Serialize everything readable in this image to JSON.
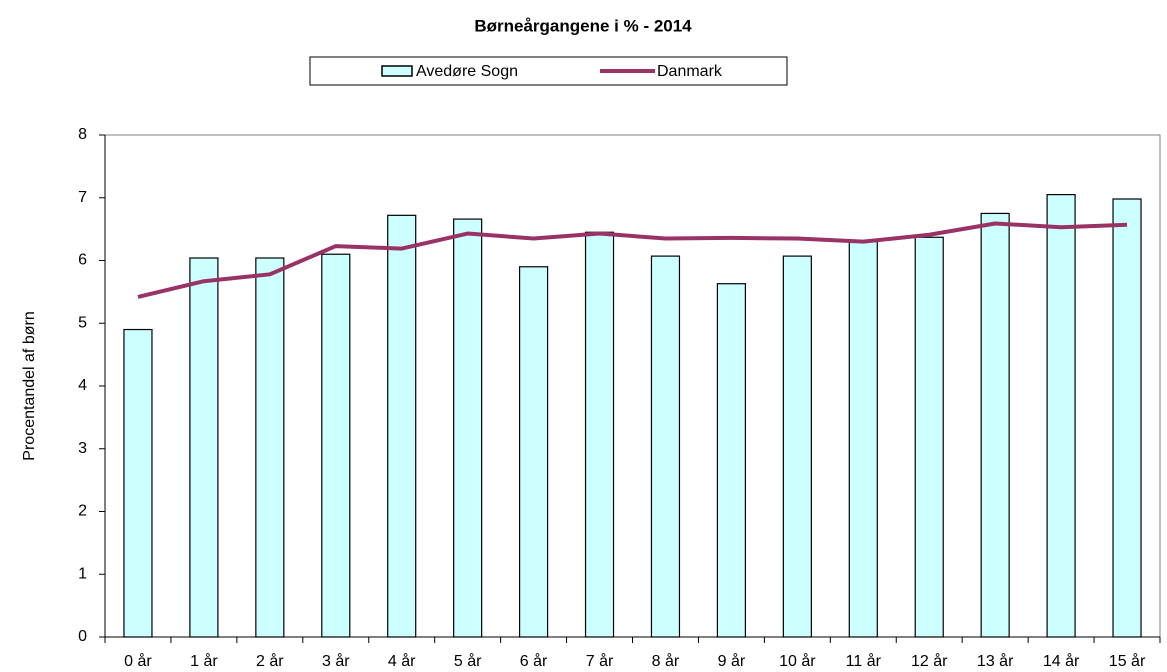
{
  "chart_data": {
    "type": "bar",
    "title": "Børneårgangene i % - 2014",
    "y_label": "Procentandel af børn",
    "categories": [
      "0 år",
      "1 år",
      "2 år",
      "3 år",
      "4 år",
      "5 år",
      "6 år",
      "7 år",
      "8 år",
      "9 år",
      "10 år",
      "11 år",
      "12 år",
      "13 år",
      "14 år",
      "15 år"
    ],
    "series": [
      {
        "name": "Avedøre Sogn",
        "type": "bar",
        "color": "#ccffff",
        "values": [
          4.9,
          6.04,
          6.04,
          6.1,
          6.72,
          6.66,
          5.9,
          6.45,
          6.07,
          5.63,
          6.07,
          6.3,
          6.37,
          6.75,
          7.05,
          6.98
        ]
      },
      {
        "name": "Danmark",
        "type": "line",
        "color": "#993366",
        "values": [
          5.42,
          5.67,
          5.78,
          6.23,
          6.19,
          6.43,
          6.35,
          6.43,
          6.35,
          6.36,
          6.35,
          6.3,
          6.41,
          6.59,
          6.53,
          6.57
        ]
      }
    ],
    "ylim": [
      0,
      8
    ],
    "yticks": [
      0,
      1,
      2,
      3,
      4,
      5,
      6,
      7,
      8
    ],
    "grid": false,
    "legend": "top"
  }
}
